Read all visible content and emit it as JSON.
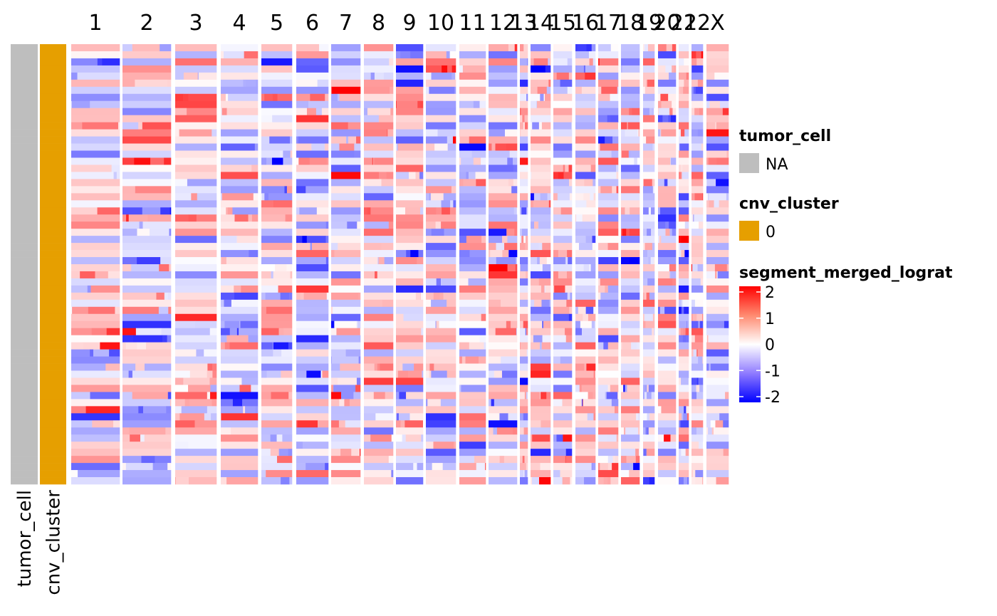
{
  "chart_data": {
    "type": "heatmap",
    "columns": [
      "1",
      "2",
      "3",
      "4",
      "5",
      "6",
      "7",
      "8",
      "9",
      "10",
      "11",
      "12",
      "13",
      "14",
      "15",
      "16",
      "17",
      "18",
      "19",
      "20",
      "21",
      "22",
      "X"
    ],
    "annotations": [
      {
        "name": "tumor_cell",
        "value": "NA",
        "color": "#BEBEBE"
      },
      {
        "name": "cnv_cluster",
        "value": "0",
        "color": "#E69F00"
      }
    ],
    "legends": [
      {
        "title": "tumor_cell",
        "items": [
          {
            "label": "NA",
            "color": "#BEBEBE"
          }
        ]
      },
      {
        "title": "cnv_cluster",
        "items": [
          {
            "label": "0",
            "color": "#E69F00"
          }
        ]
      }
    ],
    "colorbar": {
      "title": "segment_merged_lograt",
      "range": [
        -2,
        2
      ],
      "ticks": [
        "2",
        "1",
        "0",
        "-1",
        "-2"
      ],
      "colors": {
        "low": "#0000FF",
        "mid": "#FFFFFF",
        "high": "#FF0000"
      }
    },
    "rows": 62,
    "value_note": "cell-level log-ratio values, mostly within -1..1 with sparse extremes near -2 and 2"
  }
}
